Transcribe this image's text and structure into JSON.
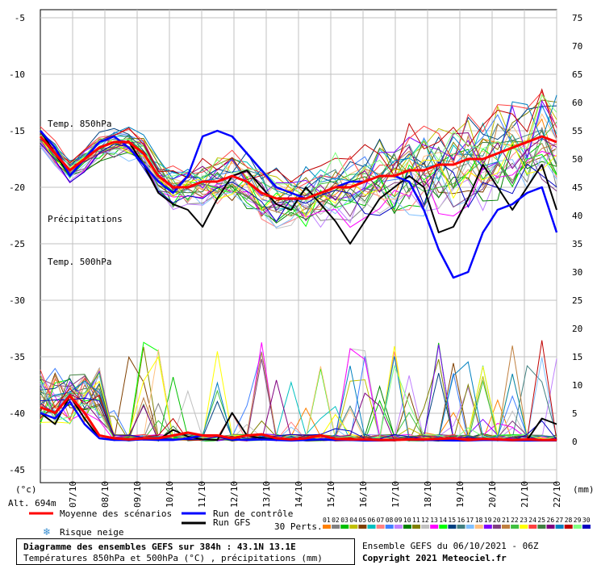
{
  "chart_data": {
    "type": "line",
    "panels": [
      {
        "label": "Temp. 850hPa",
        "y_axis_left": [
          30,
          25,
          20,
          15,
          10,
          5,
          0
        ],
        "ylim": [
          0,
          30
        ]
      },
      {
        "label": "Précipitations",
        "y_axis_right": [
          75,
          70,
          65,
          60,
          55,
          50,
          45,
          40,
          35,
          30,
          25,
          20,
          15,
          10,
          5,
          0
        ],
        "ylim_mm": [
          0,
          40
        ]
      },
      {
        "label": "Temp. 500hPa",
        "y_axis_left": [
          -5,
          -10,
          -15,
          -20,
          -25,
          -30,
          -35,
          -40,
          -45
        ],
        "ylim": [
          -45,
          -5
        ]
      }
    ],
    "x_ticks": [
      "07/10",
      "08/10",
      "09/10",
      "10/10",
      "11/10",
      "12/10",
      "13/10",
      "14/10",
      "15/10",
      "16/10",
      "17/10",
      "18/10",
      "19/10",
      "20/10",
      "21/10",
      "22/10"
    ],
    "left_unit": "(°c)",
    "right_unit": "(mm)",
    "altitude": "Alt. 694m",
    "forecast_hours": 384,
    "series": [
      {
        "name": "Moyenne des scénarios",
        "color": "#ff0000",
        "t850": [
          9.5,
          8.5,
          6.5,
          6,
          6,
          5.5,
          5,
          4.5,
          3.5,
          3,
          3,
          3,
          3.5,
          4,
          4,
          3.5,
          3.5,
          3,
          3,
          3.5,
          3.5,
          3.5,
          3,
          3,
          3,
          3.5,
          4,
          4.5,
          5,
          5,
          5.5,
          5.5,
          6,
          6.5,
          6.5,
          6.5
        ],
        "t500": [
          -15.5,
          -17,
          -18.5,
          -17.5,
          -16.5,
          -16,
          -16,
          -17,
          -19,
          -20,
          -20,
          -19.5,
          -19.5,
          -19,
          -19.5,
          -20.5,
          -21,
          -21,
          -21,
          -20.5,
          -20,
          -20,
          -19.5,
          -19,
          -19,
          -18.5,
          -18.5,
          -18,
          -18,
          -17.5,
          -17.5,
          -17,
          -16.5,
          -16,
          -15.5,
          -16
        ],
        "precip": [
          6,
          5,
          8,
          5,
          1,
          0.5,
          0.3,
          0.5,
          0.5,
          1,
          1.5,
          1,
          1,
          0.5,
          1,
          1.2,
          0.5,
          0.3,
          0.5,
          1,
          0.4,
          0.3,
          0.3,
          0.2,
          0.2,
          0.3,
          0.3,
          0.4,
          0.5,
          0.2,
          0.4,
          0.3,
          0.2,
          0.3,
          0.2,
          0.2
        ]
      },
      {
        "name": "Run de contrôle",
        "color": "#0000ff",
        "t850": [
          9,
          8.5,
          7,
          6,
          5.5,
          5.5,
          5,
          4.5,
          3.5,
          3,
          3,
          3.5,
          4,
          4.5,
          5,
          4.5,
          3.5,
          3,
          2.5,
          2,
          2,
          2.5,
          3,
          3,
          3.5,
          4,
          4.5,
          5,
          4.5,
          3.5,
          1.5,
          0.5,
          1,
          2.5,
          2.5,
          2
        ],
        "t500": [
          -15,
          -16.5,
          -19,
          -17.5,
          -16,
          -15.5,
          -16.5,
          -18,
          -19.5,
          -20.5,
          -19,
          -15.5,
          -15,
          -15.5,
          -17,
          -18.5,
          -20,
          -20.5,
          -21,
          -20.5,
          -20,
          -19.5,
          -19.5,
          -19,
          -19,
          -19.5,
          -22,
          -25.5,
          -28,
          -27.5,
          -24,
          -22,
          -21.5,
          -20.5,
          -20,
          -24
        ],
        "precip": [
          5,
          4,
          7,
          3,
          0.5,
          0.2,
          0.2,
          0.3,
          0.2,
          0.2,
          0.5,
          1,
          1,
          0.3,
          0.2,
          0.3,
          0.2,
          0.1,
          0.2,
          0.3,
          0.2,
          0.2,
          0.1,
          0.1,
          0.2,
          0.3,
          0.2,
          0.2,
          0.1,
          0.1,
          0.2,
          0.2,
          0.1,
          0.1,
          0.1,
          0.1
        ]
      },
      {
        "name": "Run GFS",
        "color": "#000000",
        "t850": [
          9.5,
          8.5,
          6.5,
          6,
          6,
          5.5,
          5,
          4.5,
          3.5,
          3,
          3.5,
          4,
          3.5,
          4,
          4.5,
          4,
          3.5,
          3,
          3,
          2.5,
          2,
          2,
          2.5,
          3,
          3,
          3.5,
          3.5,
          4.5,
          5,
          3.5,
          3,
          4,
          5,
          6,
          6.5,
          6
        ],
        "t500": [
          -15,
          -17,
          -19,
          -17.5,
          -16.5,
          -16,
          -16,
          -18,
          -20.5,
          -21.5,
          -22,
          -23.5,
          -21,
          -19,
          -18.5,
          -20,
          -21.5,
          -22,
          -20,
          -21.5,
          -23,
          -25,
          -23,
          -21,
          -20,
          -19,
          -20,
          -24,
          -23.5,
          -21,
          -18,
          -20,
          -22,
          -20,
          -18,
          -22
        ],
        "precip": [
          5,
          3,
          8,
          4,
          0.5,
          0.2,
          0.3,
          0.5,
          0.2,
          2,
          0.8,
          0.3,
          0.2,
          5,
          1,
          0.5,
          0.3,
          0.3,
          0.1,
          0.2,
          0.2,
          0.2,
          0.1,
          0.1,
          0.2,
          0.2,
          0.2,
          0.1,
          0.1,
          0.1,
          0.2,
          0.2,
          0.1,
          0.2,
          4,
          3
        ]
      }
    ]
  },
  "legend": {
    "mean_label": "Moyenne des scénarios",
    "control_label": "Run de contrôle",
    "gfs_label": "Run GFS",
    "snow_label": "Risque neige",
    "perts_label": "30 Perts.",
    "pert_numbers": [
      "01",
      "02",
      "03",
      "04",
      "05",
      "06",
      "07",
      "08",
      "09",
      "10",
      "11",
      "12",
      "13",
      "14",
      "15",
      "16",
      "17",
      "18",
      "19",
      "20",
      "21",
      "22",
      "23",
      "24",
      "25",
      "26",
      "27",
      "28",
      "29",
      "30"
    ],
    "pert_colors": [
      "#ff8000",
      "#808080",
      "#00c000",
      "#c0c000",
      "#804000",
      "#00c0c0",
      "#ff8080",
      "#4080ff",
      "#c080ff",
      "#008000",
      "#808000",
      "#c0c0c0",
      "#ff00ff",
      "#00ff00",
      "#004080",
      "#408080",
      "#80c0ff",
      "#ffc080",
      "#8000ff",
      "#804080",
      "#c08040",
      "#40c040",
      "#ffff00",
      "#ff4040",
      "#408040",
      "#800080",
      "#0080c0",
      "#c00000",
      "#80ff80",
      "#0000c0"
    ]
  },
  "footer": {
    "title_line1": "Diagramme des ensembles GEFS sur 384h : 43.1N 13.1E",
    "title_line2": "Températures 850hPa et 500hPa (°C) , précipitations (mm)",
    "run_info": "Ensemble GEFS du 06/10/2021 - 06Z",
    "copyright": "Copyright 2021 Meteociel.fr"
  }
}
